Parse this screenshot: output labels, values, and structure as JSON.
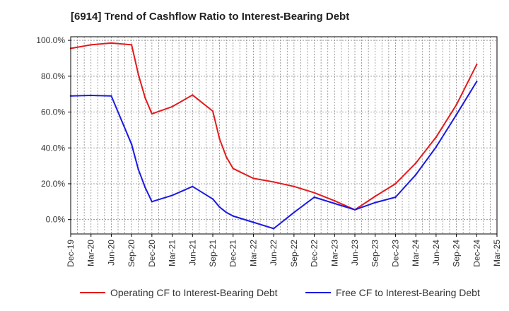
{
  "chart_data": {
    "type": "line",
    "title": "[6914]  Trend of Cashflow Ratio to Interest-Bearing Debt",
    "xlabel": "",
    "ylabel": "",
    "x_ticks": [
      "Dec-19",
      "Mar-20",
      "Jun-20",
      "Sep-20",
      "Dec-20",
      "Mar-21",
      "Jun-21",
      "Sep-21",
      "Dec-21",
      "Mar-22",
      "Jun-22",
      "Sep-22",
      "Dec-22",
      "Mar-23",
      "Jun-23",
      "Sep-23",
      "Dec-23",
      "Mar-24",
      "Jun-24",
      "Sep-24",
      "Dec-24",
      "Mar-25"
    ],
    "y_ticks": [
      "0.0%",
      "20.0%",
      "40.0%",
      "60.0%",
      "80.0%",
      "100.0%"
    ],
    "ylim": [
      -8,
      102
    ],
    "y_unit": "%",
    "grid": true,
    "legend_position": "bottom",
    "series": [
      {
        "name": "Operating CF to Interest-Bearing Debt",
        "color": "#e31a1c",
        "points": [
          [
            "Dec-19",
            95.5
          ],
          [
            "Mar-20",
            97.5
          ],
          [
            "Jun-20",
            98.5
          ],
          [
            "Sep-20",
            97.5
          ],
          [
            "Oct-20",
            81
          ],
          [
            "Nov-20",
            68
          ],
          [
            "Dec-20",
            59
          ],
          [
            "Mar-21",
            63
          ],
          [
            "Jun-21",
            69.5
          ],
          [
            "Sep-21",
            60.5
          ],
          [
            "Oct-21",
            45
          ],
          [
            "Nov-21",
            35
          ],
          [
            "Dec-21",
            28.5
          ],
          [
            "Mar-22",
            23
          ],
          [
            "Jun-22",
            21
          ],
          [
            "Sep-22",
            18.5
          ],
          [
            "Dec-22",
            15
          ],
          [
            "Mar-23",
            10.5
          ],
          [
            "Jun-23",
            5.5
          ],
          [
            "Sep-23",
            13
          ],
          [
            "Dec-23",
            20
          ],
          [
            "Mar-24",
            31.5
          ],
          [
            "Jun-24",
            46
          ],
          [
            "Sep-24",
            64
          ],
          [
            "Dec-24",
            86.5
          ]
        ]
      },
      {
        "name": "Free CF to Interest-Bearing Debt",
        "color": "#1a1ae3",
        "points": [
          [
            "Dec-19",
            69
          ],
          [
            "Mar-20",
            69.3
          ],
          [
            "Jun-20",
            69
          ],
          [
            "Sep-20",
            42
          ],
          [
            "Oct-20",
            28
          ],
          [
            "Nov-20",
            18
          ],
          [
            "Dec-20",
            10
          ],
          [
            "Mar-21",
            13.5
          ],
          [
            "Jun-21",
            18.5
          ],
          [
            "Sep-21",
            11.5
          ],
          [
            "Oct-21",
            7
          ],
          [
            "Nov-21",
            4
          ],
          [
            "Dec-21",
            2
          ],
          [
            "Mar-22",
            -1.5
          ],
          [
            "Jun-22",
            -5
          ],
          [
            "Sep-22",
            4
          ],
          [
            "Dec-22",
            12.5
          ],
          [
            "Mar-23",
            9
          ],
          [
            "Jun-23",
            5.5
          ],
          [
            "Sep-23",
            9.5
          ],
          [
            "Dec-23",
            12.5
          ],
          [
            "Mar-24",
            25
          ],
          [
            "Jun-24",
            40.5
          ],
          [
            "Sep-24",
            58.5
          ],
          [
            "Dec-24",
            77
          ]
        ]
      }
    ]
  }
}
